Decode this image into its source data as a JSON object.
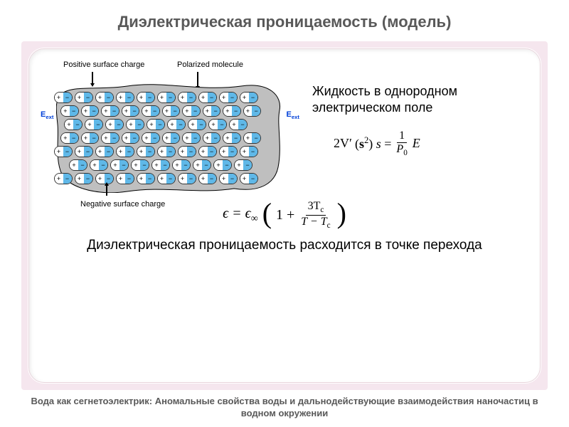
{
  "title": "Диэлектрическая проницаемость (модель)",
  "diagram": {
    "label_positive": "Positive surface charge",
    "label_polarized": "Polarized molecule",
    "label_negative": "Negative surface charge",
    "eext_label": "E",
    "eext_sub": "ext",
    "rows": 7,
    "cols": 11,
    "blob_fill": "#bfbfbf",
    "blob_stroke": "#000000",
    "mol_plus_bg": "#ffffff",
    "mol_minus_bg": "#5fb8e8",
    "arrow_color": "#0040d8",
    "label_color": "#000000",
    "label_fontsize": 11
  },
  "side_caption": "Жидкость в однородном электрическом поле",
  "equation1": {
    "lhs_a": "2V′",
    "lhs_paren": "(s",
    "lhs_sup": "2",
    "lhs_close": ") s =",
    "num": "1",
    "den_a": "P",
    "den_sub": "0",
    "tail": "E"
  },
  "equation2": {
    "lhs": "ϵ = ϵ",
    "lhs_sub": "∞",
    "inside_a": "1 +",
    "num_a": "3T",
    "num_sub": "c",
    "den_a": "T − T",
    "den_sub": "c"
  },
  "divergence_text": "Диэлектрическая проницаемость расходится в точке перехода",
  "footer_text": "Вода как сегнетоэлектрик: Аномальные свойства воды и дальнодействующие взаимодействия наночастиц в водном окружении",
  "colors": {
    "page_bg": "#ffffff",
    "panel_bg": "#f5e6ee",
    "inner_bg": "#ffffff",
    "title_color": "#595959",
    "text_color": "#000000",
    "footer_color": "#595959"
  },
  "fontsize": {
    "title": 22,
    "caption": 18,
    "equation": 20,
    "divergence": 19,
    "footer": 13
  }
}
